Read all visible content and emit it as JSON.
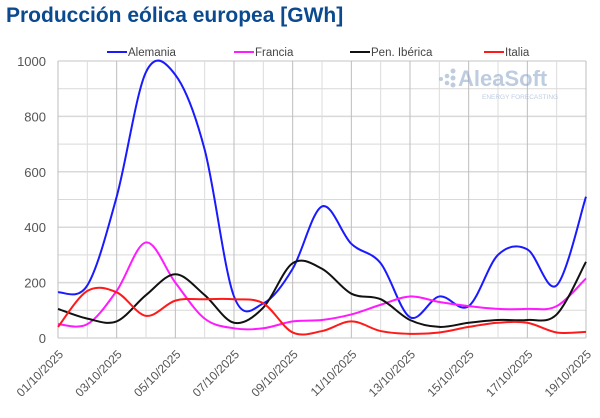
{
  "chart_data": {
    "type": "line",
    "title": "Producción eólica europea [GWh]",
    "xlabel": "",
    "ylabel": "",
    "ylim": [
      0,
      1000
    ],
    "yticks": [
      0,
      200,
      400,
      600,
      800,
      1000
    ],
    "grid": true,
    "legend_position": "top",
    "x": [
      "01/10/2025",
      "02/10/2025",
      "03/10/2025",
      "04/10/2025",
      "05/10/2025",
      "06/10/2025",
      "07/10/2025",
      "08/10/2025",
      "09/10/2025",
      "10/10/2025",
      "11/10/2025",
      "12/10/2025",
      "13/10/2025",
      "14/10/2025",
      "15/10/2025",
      "16/10/2025",
      "17/10/2025",
      "18/10/2025",
      "19/10/2025"
    ],
    "xtick_labels": [
      "01/10/2025",
      "03/10/2025",
      "05/10/2025",
      "07/10/2025",
      "09/10/2025",
      "11/10/2025",
      "13/10/2025",
      "15/10/2025",
      "17/10/2025",
      "19/10/2025"
    ],
    "series": [
      {
        "name": "Alemania",
        "color": "#1a1aff",
        "values": [
          165,
          190,
          510,
          960,
          950,
          680,
          150,
          125,
          250,
          475,
          340,
          270,
          75,
          150,
          115,
          300,
          320,
          190,
          510
        ]
      },
      {
        "name": "Francia",
        "color": "#ff1aff",
        "values": [
          50,
          50,
          170,
          345,
          200,
          70,
          35,
          35,
          60,
          65,
          85,
          120,
          150,
          130,
          115,
          105,
          105,
          115,
          215
        ]
      },
      {
        "name": "Pen. Ibérica",
        "color": "#111111",
        "values": [
          105,
          70,
          60,
          155,
          230,
          155,
          55,
          110,
          270,
          250,
          160,
          140,
          65,
          40,
          55,
          65,
          65,
          85,
          275
        ]
      },
      {
        "name": "Italia",
        "color": "#ff1a1a",
        "values": [
          40,
          170,
          165,
          80,
          135,
          140,
          140,
          125,
          20,
          25,
          60,
          25,
          15,
          20,
          40,
          55,
          55,
          20,
          22
        ]
      }
    ]
  },
  "watermark": {
    "brand": "AleaSoft",
    "tagline": "ENERGY FORECASTING"
  }
}
